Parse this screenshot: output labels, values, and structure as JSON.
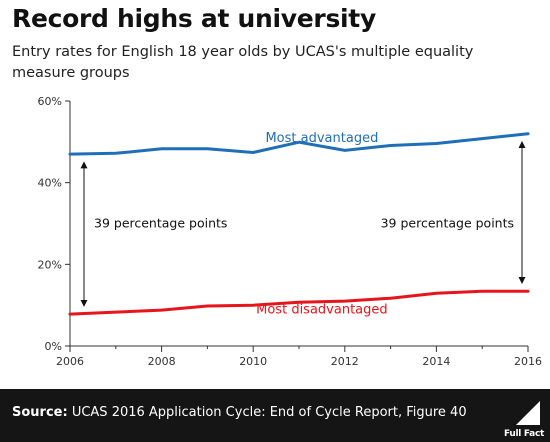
{
  "header": {
    "title": "Record highs at university",
    "subtitle": "Entry rates for English 18 year olds by UCAS's multiple equality measure groups"
  },
  "footer": {
    "source_label": "Source:",
    "source_text": " UCAS 2016 Application Cycle: End of Cycle Report, Figure 40",
    "logo_text": "Full Fact"
  },
  "colors": {
    "most_advantaged": "#1f6fb8",
    "most_disadvantaged": "#e8141b",
    "axis": "#333333",
    "footer_bg": "#151515"
  },
  "chart_data": {
    "type": "line",
    "x": [
      2006,
      2007,
      2008,
      2009,
      2010,
      2011,
      2012,
      2013,
      2014,
      2015,
      2016
    ],
    "series": [
      {
        "name": "Most advantaged",
        "values": [
          47.0,
          47.2,
          48.3,
          48.3,
          47.4,
          49.9,
          47.9,
          49.1,
          49.6,
          50.8,
          52.0
        ]
      },
      {
        "name": "Most disadvantaged",
        "values": [
          7.8,
          8.3,
          8.8,
          9.8,
          10.0,
          10.7,
          11.0,
          11.7,
          12.9,
          13.4,
          13.4
        ]
      }
    ],
    "xlim": [
      2006,
      2016
    ],
    "ylim": [
      0,
      60
    ],
    "x_ticks": [
      2006,
      2008,
      2010,
      2012,
      2014,
      2016
    ],
    "y_ticks": [
      0,
      20,
      40,
      60
    ],
    "y_tick_labels": [
      "0%",
      "20%",
      "40%",
      "60%"
    ],
    "annotations": [
      {
        "text": "39 percentage points",
        "year": 2006
      },
      {
        "text": "39 percentage points",
        "year": 2016
      }
    ],
    "grid": false
  }
}
